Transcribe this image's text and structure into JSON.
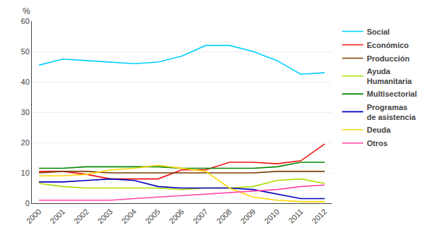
{
  "chart_data": {
    "type": "line",
    "x": [
      2000,
      2001,
      2002,
      2003,
      2004,
      2005,
      2006,
      2007,
      2008,
      2009,
      2010,
      2011,
      2012
    ],
    "series": [
      {
        "name": "Social",
        "color": "#00CFFF",
        "values": [
          45.5,
          47.5,
          47.0,
          46.5,
          46.0,
          46.5,
          48.5,
          52.0,
          52.0,
          50.0,
          47.0,
          42.5,
          43.0
        ]
      },
      {
        "name": "Económico",
        "color": "#EE1111",
        "values": [
          10.5,
          10.5,
          9.5,
          8.0,
          8.0,
          8.0,
          11.0,
          11.0,
          13.5,
          13.5,
          13.0,
          14.0,
          19.5
        ]
      },
      {
        "name": "Producción",
        "color": "#7B3F00",
        "values": [
          10.0,
          10.5,
          10.5,
          10.0,
          10.0,
          10.0,
          10.0,
          10.0,
          10.0,
          10.0,
          10.5,
          10.5,
          10.5
        ]
      },
      {
        "name": "Ayuda\nHumanitaria",
        "color": "#AADD00",
        "values": [
          6.5,
          5.5,
          5.0,
          5.0,
          5.0,
          5.0,
          4.5,
          5.0,
          5.0,
          5.5,
          7.5,
          8.0,
          6.5
        ]
      },
      {
        "name": "Multisectorial",
        "color": "#008800",
        "values": [
          11.5,
          11.5,
          12.0,
          12.0,
          12.0,
          12.0,
          11.5,
          11.5,
          11.5,
          11.5,
          12.0,
          13.5,
          13.5
        ]
      },
      {
        "name": "Programas\nde asistencia",
        "color": "#0000BB",
        "values": [
          7.0,
          7.0,
          7.5,
          8.0,
          7.5,
          5.5,
          5.0,
          5.0,
          5.0,
          4.5,
          3.0,
          1.5,
          1.5
        ]
      },
      {
        "name": "Deuda",
        "color": "#FFD700",
        "values": [
          9.0,
          9.0,
          9.5,
          11.0,
          11.5,
          12.5,
          11.5,
          10.5,
          5.0,
          2.0,
          1.0,
          0.5,
          0.5
        ]
      },
      {
        "name": "Otros",
        "color": "#FF44AA",
        "values": [
          1.0,
          1.0,
          1.0,
          1.0,
          1.5,
          2.0,
          2.5,
          3.0,
          3.5,
          4.0,
          4.5,
          5.5,
          6.0
        ]
      }
    ],
    "xlim": [
      1999.7,
      2012.3
    ],
    "xticks": [
      2000,
      2001,
      2002,
      2003,
      2004,
      2005,
      2006,
      2007,
      2008,
      2009,
      2010,
      2011,
      2012
    ],
    "ylim": [
      0,
      60
    ],
    "yticks": [
      0,
      10,
      20,
      30,
      40,
      50,
      60
    ],
    "ylabel": "%",
    "grid": true,
    "legend": "right"
  }
}
